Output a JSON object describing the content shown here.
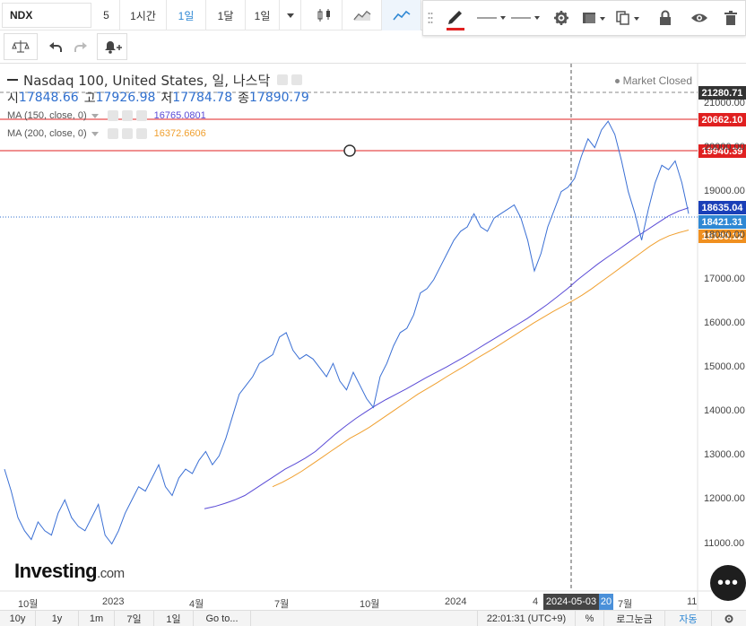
{
  "toolbar": {
    "symbol": "NDX",
    "intervals": [
      "5",
      "1시간",
      "1일",
      "1달",
      "1일"
    ],
    "active_interval": "1일"
  },
  "drawing_toolbar": {
    "active_tool_color": "#e02020"
  },
  "legend": {
    "title": "Nasdaq 100, United States, 일, 나스닥",
    "open_label": "시",
    "open": "17848.66",
    "high_label": "고",
    "high": "17926.98",
    "low_label": "저",
    "low": "17784.78",
    "close_label": "종",
    "close": "17890.79",
    "ma150_label": "MA (150, close, 0)",
    "ma150_value": "16765.0801",
    "ma150_color": "#5a4bd6",
    "ma200_label": "MA (200, close, 0)",
    "ma200_value": "16372.6606",
    "ma200_color": "#f0a030",
    "market_status": "Market Closed"
  },
  "price_axis": {
    "ticks": [
      "21000.00",
      "20000.00",
      "19000.00",
      "18000.00",
      "17000.00",
      "16000.00",
      "15000.00",
      "14000.00",
      "13000.00",
      "12000.00",
      "11000.00"
    ],
    "labels": [
      {
        "text": "21280.71",
        "bg": "#333333"
      },
      {
        "text": "20662.10",
        "bg": "#e02020"
      },
      {
        "text": "19940.39",
        "bg": "#e02020"
      },
      {
        "text": "18635.04",
        "bg": "#1a3fb8"
      },
      {
        "text": "18421.31",
        "bg": "#2f88d4"
      },
      {
        "text": "18130.12",
        "bg": "#f09020"
      }
    ]
  },
  "time_axis": {
    "ticks": [
      "10월",
      "2023",
      "4월",
      "7월",
      "10월",
      "2024",
      "4",
      "7월",
      "11"
    ],
    "crosshair_date": "2024-05-03",
    "crosshair_extra": "20"
  },
  "logo": {
    "main": "Investing",
    "suffix": ".com"
  },
  "fab_label": "•••",
  "bottom_bar": {
    "ranges": [
      "10y",
      "1y",
      "1m",
      "7일",
      "1일",
      "Go to..."
    ],
    "clock": "22:01:31 (UTC+9)",
    "percent": "%",
    "log": "로그눈금",
    "auto": "자동"
  },
  "chart_data": {
    "type": "line",
    "title": "Nasdaq 100, United States, 일, 나스닥",
    "ylim": [
      10400,
      21500
    ],
    "series": [
      {
        "name": "",
        "color": "#3a6fd4",
        "values": [
          12700,
          12200,
          11600,
          11300,
          11100,
          11500,
          11300,
          11200,
          11700,
          12000,
          11600,
          11400,
          11300,
          11600,
          11900,
          11200,
          11000,
          11300,
          11700,
          12000,
          12300,
          12200,
          12500,
          12800,
          12300,
          12100,
          12500,
          12700,
          12600,
          12900,
          13100,
          12800,
          13000,
          13400,
          13900,
          14400,
          14600,
          14800,
          15100,
          15200,
          15300,
          15700,
          15800,
          15400,
          15200,
          15300,
          15200,
          15000,
          14800,
          15100,
          14700,
          14500,
          14900,
          14600,
          14300,
          14100,
          14800,
          15100,
          15500,
          15800,
          15900,
          16200,
          16700,
          16800,
          17000,
          17300,
          17600,
          17900,
          18100,
          18200,
          18500,
          18200,
          18100,
          18400,
          18500,
          18600,
          18700,
          18400,
          17900,
          17200,
          17600,
          18200,
          18600,
          19000,
          19100,
          19300,
          19800,
          20200,
          20000,
          20400,
          20600,
          20300,
          19700,
          19000,
          18500,
          17900,
          18600,
          19200,
          19600,
          19500,
          19700,
          19200,
          18500
        ]
      },
      {
        "name": "MA (150, close, 0)",
        "color": "#5a4bd6",
        "values": [
          11800,
          11850,
          11920,
          12000,
          12100,
          12250,
          12400,
          12550,
          12700,
          12820,
          12950,
          13100,
          13300,
          13500,
          13680,
          13850,
          14000,
          14150,
          14280,
          14400,
          14520,
          14650,
          14780,
          14900,
          15020,
          15150,
          15280,
          15420,
          15560,
          15700,
          15840,
          15980,
          16120,
          16280,
          16440,
          16620,
          16800,
          17000,
          17180,
          17360,
          17520,
          17680,
          17840,
          18000,
          18150,
          18300,
          18450,
          18560,
          18635
        ]
      },
      {
        "name": "MA (200, close, 0)",
        "color": "#f0a030",
        "values": [
          12300,
          12400,
          12520,
          12650,
          12800,
          12950,
          13100,
          13250,
          13400,
          13520,
          13650,
          13800,
          13950,
          14100,
          14250,
          14400,
          14530,
          14660,
          14800,
          14930,
          15060,
          15200,
          15330,
          15460,
          15600,
          15740,
          15880,
          16020,
          16150,
          16280,
          16400,
          16520,
          16650,
          16800,
          16960,
          17120,
          17280,
          17440,
          17600,
          17760,
          17900,
          18000,
          18070,
          18130
        ]
      }
    ]
  }
}
